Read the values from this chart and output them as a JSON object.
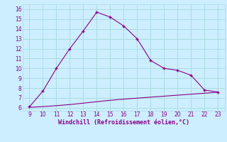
{
  "x_main": [
    9,
    10,
    11,
    12,
    13,
    14,
    15,
    16,
    17,
    18,
    19,
    20,
    21,
    22,
    23
  ],
  "y_main": [
    6.1,
    7.7,
    10.0,
    12.0,
    13.8,
    15.7,
    15.2,
    14.3,
    13.0,
    10.8,
    10.0,
    9.8,
    9.3,
    7.8,
    7.6
  ],
  "x_flat": [
    9,
    10,
    11,
    12,
    13,
    14,
    15,
    16,
    17,
    18,
    19,
    20,
    21,
    22,
    23
  ],
  "y_flat": [
    6.05,
    6.12,
    6.22,
    6.33,
    6.47,
    6.62,
    6.76,
    6.88,
    6.98,
    7.08,
    7.18,
    7.28,
    7.38,
    7.48,
    7.58
  ],
  "line_color": "#880088",
  "bg_color": "#cceeff",
  "grid_color": "#aadddd",
  "xlabel": "Windchill (Refroidissement éolien,°C)",
  "xlim": [
    8.5,
    23.5
  ],
  "ylim": [
    5.7,
    16.5
  ],
  "xticks": [
    9,
    10,
    11,
    12,
    13,
    14,
    15,
    16,
    17,
    18,
    19,
    20,
    21,
    22,
    23
  ],
  "yticks": [
    6,
    7,
    8,
    9,
    10,
    11,
    12,
    13,
    14,
    15,
    16
  ],
  "xlabel_color": "#880088",
  "tick_color": "#880088"
}
